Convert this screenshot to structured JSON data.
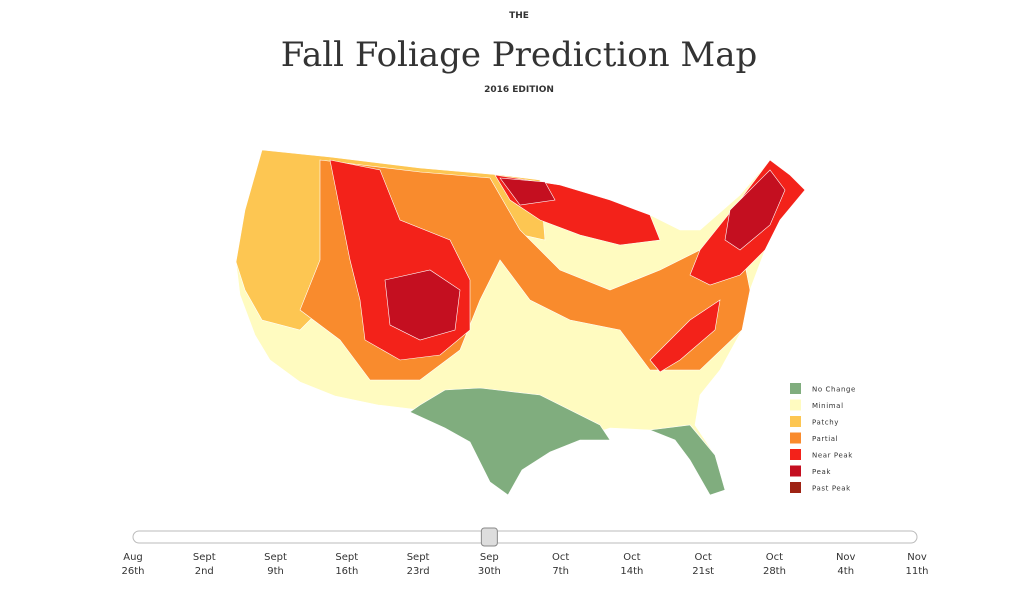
{
  "header": {
    "kicker": "THE",
    "title": "Fall Foliage Prediction Map",
    "edition": "2016 EDITION"
  },
  "legend": [
    {
      "label": "No Change",
      "color": "#80ad7e"
    },
    {
      "label": "Minimal",
      "color": "#fffbc0"
    },
    {
      "label": "Patchy",
      "color": "#fdc652"
    },
    {
      "label": "Partial",
      "color": "#f98b2d"
    },
    {
      "label": "Near Peak",
      "color": "#f3221a"
    },
    {
      "label": "Peak",
      "color": "#c40f20"
    },
    {
      "label": "Past Peak",
      "color": "#9e2314"
    }
  ],
  "slider": {
    "selected_index": 5,
    "dates": [
      {
        "month": "Aug",
        "day": "26th"
      },
      {
        "month": "Sept",
        "day": "2nd"
      },
      {
        "month": "Sept",
        "day": "9th"
      },
      {
        "month": "Sept",
        "day": "16th"
      },
      {
        "month": "Sept",
        "day": "23rd"
      },
      {
        "month": "Sep",
        "day": "30th"
      },
      {
        "month": "Oct",
        "day": "7th"
      },
      {
        "month": "Oct",
        "day": "14th"
      },
      {
        "month": "Oct",
        "day": "21st"
      },
      {
        "month": "Oct",
        "day": "28th"
      },
      {
        "month": "Nov",
        "day": "4th"
      },
      {
        "month": "Nov",
        "day": "11th"
      }
    ]
  }
}
